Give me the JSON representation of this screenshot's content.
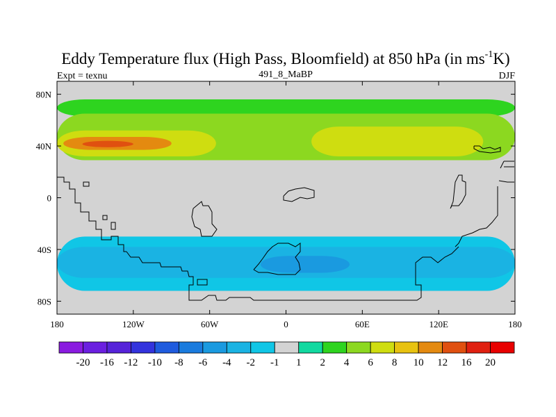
{
  "chart_data": {
    "type": "heatmap",
    "title_main": "Eddy Temperature flux (High Pass, Bloomfield) at 850 hPa (in ms",
    "title_sup": "-1",
    "title_end": "K)",
    "subtitle_left": "Expt = texnu",
    "subtitle_center": "491_8_MaBP",
    "subtitle_right": "DJF",
    "x_axis": {
      "range": [
        -180,
        180
      ],
      "ticks": [
        -180,
        -120,
        -60,
        0,
        60,
        120,
        180
      ],
      "tick_labels": [
        "180",
        "120W",
        "60W",
        "0",
        "60E",
        "120E",
        "180"
      ]
    },
    "y_axis": {
      "range": [
        -90,
        90
      ],
      "ticks": [
        80,
        40,
        0,
        -40,
        -80
      ],
      "tick_labels": [
        "80N",
        "40N",
        "0",
        "40S",
        "80S"
      ]
    },
    "colorbar": {
      "levels": [
        "-20",
        "-16",
        "-12",
        "-10",
        "-8",
        "-6",
        "-4",
        "-2",
        "-1",
        "1",
        "2",
        "4",
        "6",
        "8",
        "10",
        "12",
        "16",
        "20"
      ],
      "colors": [
        "#8a1be0",
        "#6b1fe0",
        "#5623d9",
        "#3333dd",
        "#1f5bde",
        "#1a7bde",
        "#1a9ae0",
        "#1ab3e3",
        "#10c6e6",
        "#d3d3d3",
        "#11d9a0",
        "#2ed41f",
        "#8cd820",
        "#cfdd10",
        "#e8c210",
        "#e48a10",
        "#e05010",
        "#e02010",
        "#e80000"
      ]
    },
    "bands": [
      {
        "name": "n-high-green",
        "lat": [
          63,
          76
        ],
        "lon": [
          -180,
          180
        ],
        "value": 2
      },
      {
        "name": "n-midlat-green",
        "lat": [
          29,
          65
        ],
        "lon": [
          -180,
          180
        ],
        "value": 4
      },
      {
        "name": "n-midlat-yellow-atlantic",
        "lat": [
          32,
          52
        ],
        "lon": [
          -180,
          -55
        ],
        "value": 6
      },
      {
        "name": "n-midlat-yellow-asia",
        "lat": [
          32,
          55
        ],
        "lon": [
          20,
          155
        ],
        "value": 6
      },
      {
        "name": "n-pacific-orange",
        "lat": [
          37,
          47
        ],
        "lon": [
          -175,
          -90
        ],
        "value": 10
      },
      {
        "name": "n-pacific-core",
        "lat": [
          39,
          44
        ],
        "lon": [
          -160,
          -120
        ],
        "value": 12
      },
      {
        "name": "s-midlat-band",
        "lat": [
          -72,
          -30
        ],
        "lon": [
          -180,
          180
        ],
        "value": -2
      },
      {
        "name": "s-midlat-core",
        "lat": [
          -62,
          -38
        ],
        "lon": [
          -180,
          180
        ],
        "value": -4
      },
      {
        "name": "s-atlantic-core",
        "lat": [
          -58,
          -45
        ],
        "lon": [
          -20,
          50
        ],
        "value": -6
      }
    ]
  }
}
